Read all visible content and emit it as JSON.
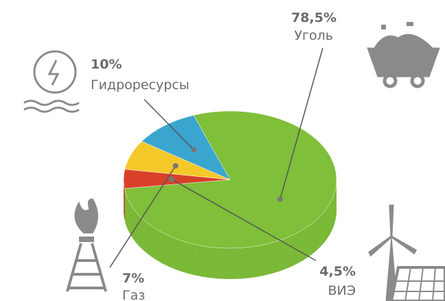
{
  "chart_data": {
    "type": "pie",
    "categories": [
      "Уголь",
      "ВИЭ",
      "Газ",
      "Гидроресурсы"
    ],
    "values": [
      78.5,
      4.5,
      7,
      10
    ],
    "value_labels": [
      "78,5%",
      "4,5%",
      "7%",
      "10%"
    ],
    "colors": [
      "#7fbf3a",
      "#d9402a",
      "#f5c82a",
      "#3aa6cf"
    ]
  }
}
